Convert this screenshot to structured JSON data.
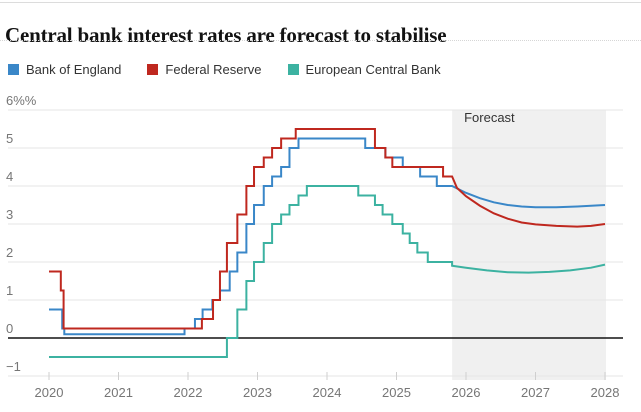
{
  "page": {
    "title": "Central bank interest rates are forecast to stabilise"
  },
  "legend": [
    {
      "label": "Bank of England",
      "color": "#3a87c8"
    },
    {
      "label": "Federal Reserve",
      "color": "#bf281f"
    },
    {
      "label": "European Central Bank",
      "color": "#3cb2a1"
    }
  ],
  "colors": {
    "gridline": "#e6e6e6",
    "zero_line": "#121212",
    "forecast_band": "#f0f0f0",
    "tick": "#cfcfcf",
    "axis_text": "#767676",
    "annotation_text": "#333333"
  },
  "chart_data": {
    "type": "line",
    "title": "Central bank interest rates are forecast to stabilise",
    "forecast_label": "Forecast",
    "forecast_start_year": 2025.8,
    "xlabel": "",
    "ylabel": "%",
    "xlim": [
      2019.4,
      2028.25
    ],
    "ylim": [
      -1.3,
      6
    ],
    "grid": true,
    "legend_position": "top",
    "x_ticks": [
      {
        "value": 2020,
        "label": "2020"
      },
      {
        "value": 2021,
        "label": "2021"
      },
      {
        "value": 2022,
        "label": "2022"
      },
      {
        "value": 2023,
        "label": "2023"
      },
      {
        "value": 2024,
        "label": "2024"
      },
      {
        "value": 2025,
        "label": "2025"
      },
      {
        "value": 2026,
        "label": "2026"
      },
      {
        "value": 2027,
        "label": "2027"
      },
      {
        "value": 2028,
        "label": "2028"
      }
    ],
    "y_ticks": [
      {
        "value": 6,
        "label": "6%%"
      },
      {
        "value": 5,
        "label": "5"
      },
      {
        "value": 4,
        "label": "4"
      },
      {
        "value": 3,
        "label": "3"
      },
      {
        "value": 2,
        "label": "2"
      },
      {
        "value": 1,
        "label": "1"
      },
      {
        "value": 0,
        "label": "0"
      },
      {
        "value": -1,
        "label": "−1"
      }
    ],
    "series": [
      {
        "name": "Bank of England",
        "color": "#3a87c8",
        "history": [
          [
            2020.0,
            0.75
          ],
          [
            2020.19,
            0.25
          ],
          [
            2020.22,
            0.1
          ],
          [
            2021.95,
            0.25
          ],
          [
            2022.1,
            0.5
          ],
          [
            2022.21,
            0.75
          ],
          [
            2022.35,
            1.0
          ],
          [
            2022.46,
            1.25
          ],
          [
            2022.6,
            1.75
          ],
          [
            2022.71,
            2.25
          ],
          [
            2022.84,
            3.0
          ],
          [
            2022.95,
            3.5
          ],
          [
            2023.09,
            4.0
          ],
          [
            2023.21,
            4.25
          ],
          [
            2023.34,
            4.5
          ],
          [
            2023.46,
            5.0
          ],
          [
            2023.59,
            5.25
          ],
          [
            2024.55,
            5.0
          ],
          [
            2024.84,
            4.75
          ],
          [
            2025.09,
            4.5
          ],
          [
            2025.34,
            4.25
          ],
          [
            2025.58,
            4.0
          ],
          [
            2025.8,
            4.0
          ]
        ],
        "forecast": [
          [
            2025.8,
            4.0
          ],
          [
            2026.0,
            3.82
          ],
          [
            2026.2,
            3.68
          ],
          [
            2026.4,
            3.57
          ],
          [
            2026.6,
            3.5
          ],
          [
            2026.8,
            3.46
          ],
          [
            2027.0,
            3.44
          ],
          [
            2027.3,
            3.44
          ],
          [
            2027.6,
            3.46
          ],
          [
            2028.0,
            3.5
          ]
        ]
      },
      {
        "name": "Federal Reserve",
        "color": "#bf281f",
        "history": [
          [
            2020.0,
            1.75
          ],
          [
            2020.17,
            1.25
          ],
          [
            2020.21,
            0.25
          ],
          [
            2022.2,
            0.5
          ],
          [
            2022.36,
            1.0
          ],
          [
            2022.46,
            1.75
          ],
          [
            2022.56,
            2.5
          ],
          [
            2022.71,
            3.25
          ],
          [
            2022.84,
            4.0
          ],
          [
            2022.95,
            4.5
          ],
          [
            2023.09,
            4.75
          ],
          [
            2023.21,
            5.0
          ],
          [
            2023.34,
            5.25
          ],
          [
            2023.55,
            5.5
          ],
          [
            2024.69,
            5.0
          ],
          [
            2024.84,
            4.75
          ],
          [
            2024.94,
            4.5
          ],
          [
            2025.67,
            4.25
          ],
          [
            2025.8,
            4.25
          ]
        ],
        "forecast": [
          [
            2025.8,
            4.25
          ],
          [
            2025.87,
            3.95
          ],
          [
            2026.0,
            3.73
          ],
          [
            2026.2,
            3.48
          ],
          [
            2026.4,
            3.28
          ],
          [
            2026.6,
            3.14
          ],
          [
            2026.8,
            3.04
          ],
          [
            2027.0,
            2.99
          ],
          [
            2027.3,
            2.95
          ],
          [
            2027.6,
            2.93
          ],
          [
            2027.8,
            2.95
          ],
          [
            2028.0,
            3.0
          ]
        ]
      },
      {
        "name": "European Central Bank",
        "color": "#3cb2a1",
        "history": [
          [
            2020.0,
            -0.5
          ],
          [
            2022.56,
            0.0
          ],
          [
            2022.71,
            0.75
          ],
          [
            2022.84,
            1.5
          ],
          [
            2022.95,
            2.0
          ],
          [
            2023.09,
            2.5
          ],
          [
            2023.21,
            3.0
          ],
          [
            2023.34,
            3.25
          ],
          [
            2023.46,
            3.5
          ],
          [
            2023.59,
            3.75
          ],
          [
            2023.71,
            4.0
          ],
          [
            2024.45,
            3.75
          ],
          [
            2024.69,
            3.5
          ],
          [
            2024.8,
            3.25
          ],
          [
            2024.94,
            3.0
          ],
          [
            2025.09,
            2.75
          ],
          [
            2025.19,
            2.5
          ],
          [
            2025.3,
            2.25
          ],
          [
            2025.45,
            2.0
          ],
          [
            2025.8,
            1.9
          ]
        ],
        "forecast": [
          [
            2025.8,
            1.9
          ],
          [
            2026.0,
            1.85
          ],
          [
            2026.3,
            1.78
          ],
          [
            2026.6,
            1.73
          ],
          [
            2026.9,
            1.72
          ],
          [
            2027.2,
            1.74
          ],
          [
            2027.5,
            1.78
          ],
          [
            2027.8,
            1.85
          ],
          [
            2028.0,
            1.93
          ]
        ]
      }
    ]
  }
}
